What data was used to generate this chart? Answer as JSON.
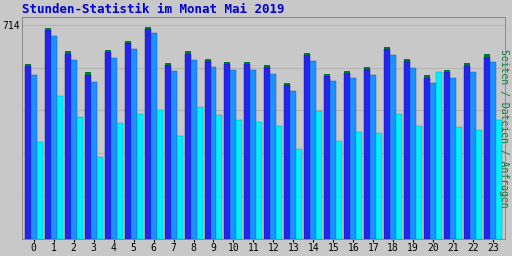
{
  "title": "Stunden-Statistik im Monat Mai 2019",
  "title_color": "#0000CC",
  "title_fontsize": 9,
  "ylabel_right": "Seiten / Dateien / Anfragen",
  "background_color": "#C8C8C8",
  "plot_bg_color": "#C8C8C8",
  "hours": [
    0,
    1,
    2,
    3,
    4,
    5,
    6,
    7,
    8,
    9,
    10,
    11,
    12,
    13,
    14,
    15,
    16,
    17,
    18,
    19,
    20,
    21,
    22,
    23
  ],
  "seiten": [
    575,
    695,
    618,
    548,
    622,
    652,
    700,
    580,
    618,
    594,
    584,
    584,
    572,
    512,
    614,
    543,
    554,
    566,
    632,
    592,
    538,
    556,
    578,
    608
  ],
  "dateien": [
    548,
    676,
    597,
    523,
    602,
    632,
    686,
    560,
    597,
    572,
    562,
    562,
    550,
    492,
    592,
    525,
    536,
    547,
    612,
    570,
    521,
    537,
    558,
    590
  ],
  "anfragen": [
    325,
    478,
    408,
    275,
    388,
    418,
    430,
    344,
    440,
    412,
    398,
    390,
    378,
    300,
    428,
    328,
    356,
    354,
    418,
    378,
    558,
    372,
    362,
    398
  ],
  "color_seiten": "#2424EE",
  "color_dateien": "#1E90FF",
  "color_anfragen": "#00EEFF",
  "color_top": "#007733",
  "bar_width": 0.3,
  "ylim": [
    0,
    740
  ],
  "ytick_val": 714,
  "yticks": [
    0,
    142.8,
    285.6,
    428.4,
    571.2,
    714
  ],
  "grid_color": "#AAAAAA",
  "font_monospace": "monospace"
}
